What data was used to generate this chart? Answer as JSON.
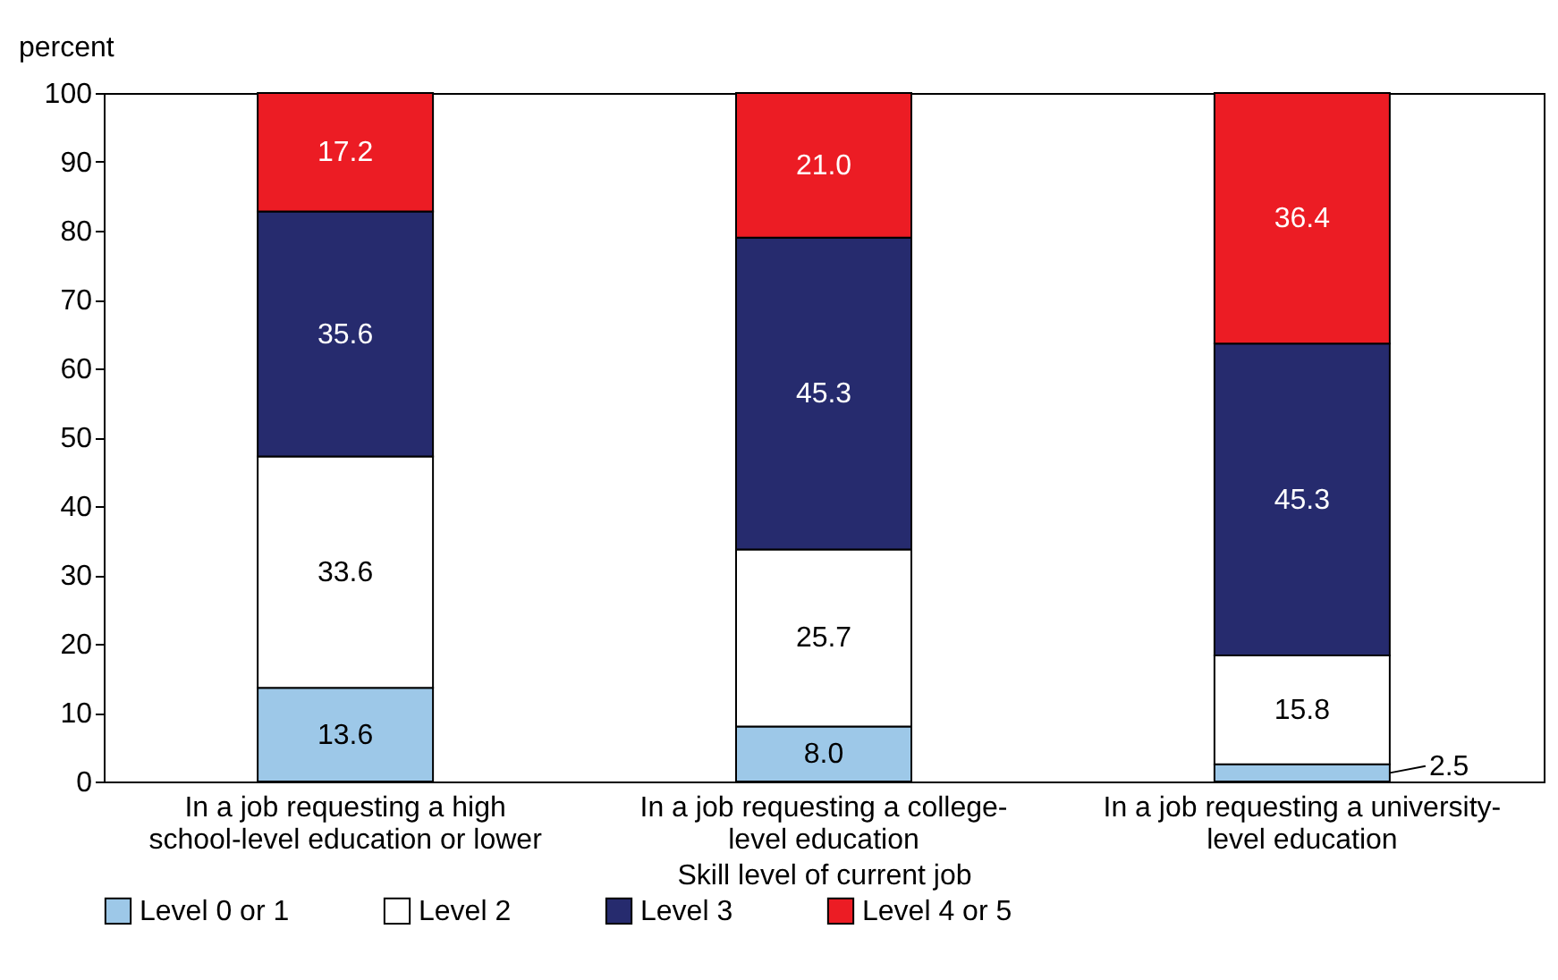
{
  "chart_data": {
    "type": "bar",
    "stacked": true,
    "xlabel": "Skill level of current job",
    "ylabel": "percent",
    "categories": [
      "In a job requesting a high school-level education or lower",
      "In a job requesting a college-level education",
      "In a job requesting a university-level education"
    ],
    "series": [
      {
        "name": "Level 0 or 1",
        "color": "#9dc8e8",
        "values": [
          13.6,
          8.0,
          2.5
        ],
        "value_labels": [
          "13.6",
          "8.0",
          "2.5"
        ]
      },
      {
        "name": "Level 2",
        "color": "#ffffff",
        "values": [
          33.6,
          25.7,
          15.8
        ],
        "value_labels": [
          "33.6",
          "25.7",
          "15.8"
        ]
      },
      {
        "name": "Level 3",
        "color": "#262b6e",
        "values": [
          35.6,
          45.3,
          45.3
        ],
        "value_labels": [
          "35.6",
          "45.3",
          "45.3"
        ]
      },
      {
        "name": "Level 4 or 5",
        "color": "#ec1c24",
        "values": [
          17.2,
          21.0,
          36.4
        ],
        "value_labels": [
          "17.2",
          "21.0",
          "36.4"
        ]
      }
    ],
    "ylim": [
      0,
      100
    ],
    "yticks": [
      0,
      10,
      20,
      30,
      40,
      50,
      60,
      70,
      80,
      90,
      100
    ],
    "legend": "bottom"
  }
}
